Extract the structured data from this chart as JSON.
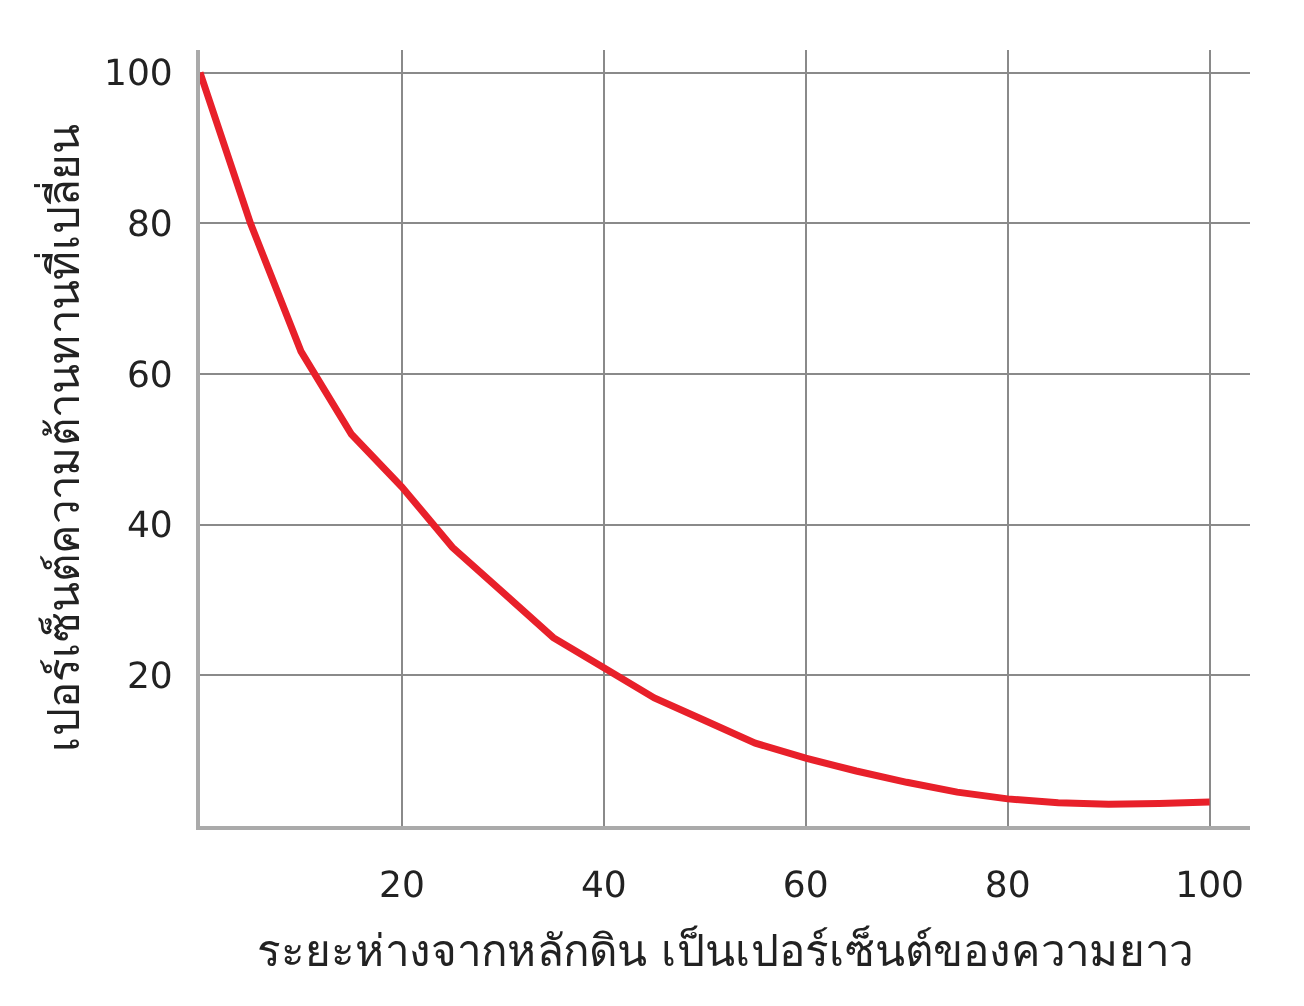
{
  "chart_data": {
    "type": "line",
    "xlabel": "ระยะห่างจากหลักดิน เป็นเปอร์เซ็นต์ของความยาว",
    "ylabel": "เปอร์เซ็นต์ความต้านทานที่เปลี่ยน",
    "x": [
      0,
      5,
      10,
      15,
      20,
      25,
      30,
      35,
      40,
      45,
      50,
      55,
      60,
      65,
      70,
      75,
      80,
      85,
      90,
      95,
      100
    ],
    "series": [
      {
        "color": "#e8202a",
        "values": [
          100,
          80,
          63,
          52,
          45,
          37,
          31,
          25,
          21,
          17,
          14,
          11,
          9,
          7.3,
          5.8,
          4.5,
          3.6,
          3.1,
          2.9,
          3,
          3.2
        ]
      }
    ],
    "xlim": [
      0,
      104
    ],
    "ylim": [
      0,
      103
    ],
    "xticks": [
      20,
      40,
      60,
      80,
      100
    ],
    "yticks": [
      20,
      40,
      60,
      80,
      100
    ],
    "grid": true,
    "marker": "none",
    "line_style": "solid",
    "legend": false
  }
}
